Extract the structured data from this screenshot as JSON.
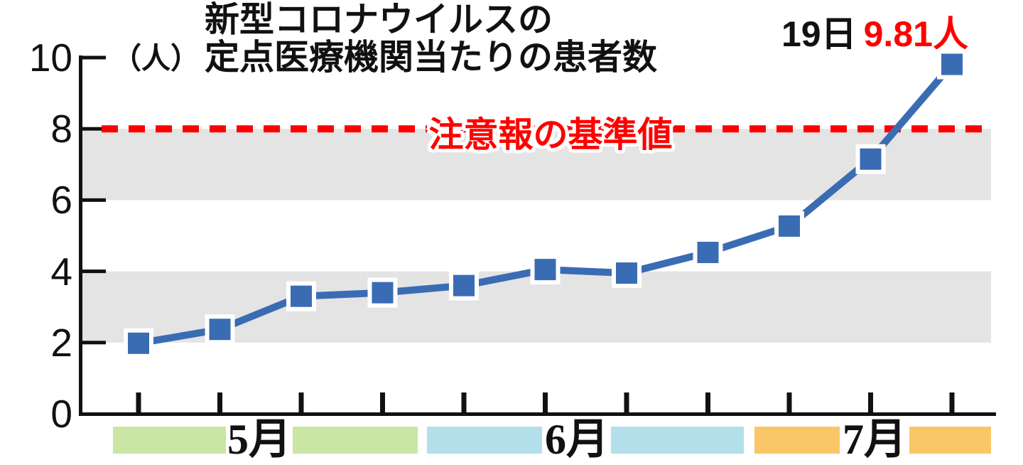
{
  "title": {
    "line1": "新型コロナウイルスの",
    "line2": "定点医療機関当たりの患者数"
  },
  "y_axis": {
    "unit": "（人）"
  },
  "annotation": {
    "date": "19日",
    "value": "9.81人"
  },
  "threshold": {
    "label": "注意報の基準値",
    "value": 8
  },
  "months": [
    {
      "label": "5月",
      "color": "#CBE5A4",
      "weeks": 4
    },
    {
      "label": "6月",
      "color": "#B3DFEB",
      "weeks": 4
    },
    {
      "label": "7月",
      "color": "#FBC668",
      "weeks": 3
    }
  ],
  "colors": {
    "line": "#3A6CB4",
    "marker": "#3A6CB4",
    "marker_border": "#FFFFFF",
    "threshold_red": "#FF0000",
    "stripe_gray": "#E4E4E4",
    "axis_black": "#111111"
  },
  "chart_data": {
    "type": "line",
    "title": "新型コロナウイルスの定点医療機関当たりの患者数",
    "ylabel": "人",
    "ylim": [
      0,
      10
    ],
    "y_ticks": [
      0,
      2,
      4,
      6,
      8,
      10
    ],
    "n_points": 11,
    "values": [
      1.98,
      2.37,
      3.3,
      3.4,
      3.6,
      4.05,
      3.95,
      4.53,
      5.27,
      7.15,
      9.81
    ],
    "x_months": [
      {
        "label": "5月",
        "points": 4
      },
      {
        "label": "6月",
        "points": 4
      },
      {
        "label": "7月",
        "points": 3
      }
    ],
    "threshold_line": {
      "value": 8,
      "label": "注意報の基準値"
    },
    "last_point_label": "19日 9.81人",
    "stripe_bands": [
      [
        2,
        4
      ],
      [
        6,
        8
      ]
    ],
    "legend": "none"
  }
}
